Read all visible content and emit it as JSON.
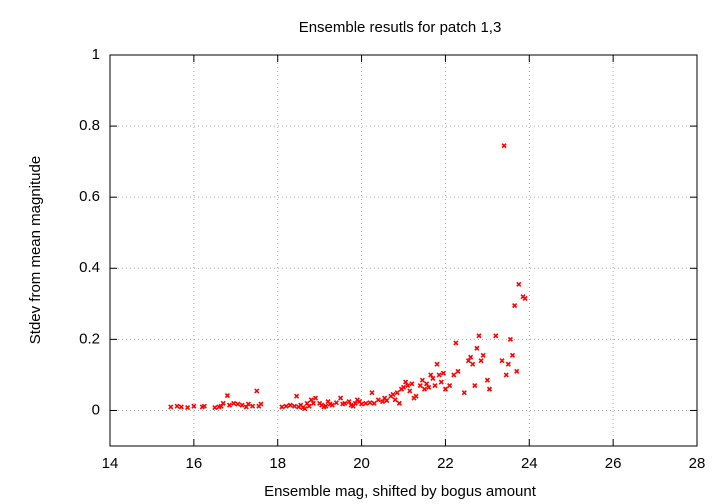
{
  "chart_data": {
    "type": "scatter",
    "title": "Ensemble resutls for patch 1,3",
    "x_label": "Ensemble mag, shifted by bogus amount",
    "y_label": "Stdev from mean magnitude",
    "color": "#ff0000",
    "grid": true,
    "xlim": [
      14,
      28
    ],
    "xticks": [
      14,
      16,
      18,
      20,
      22,
      24,
      26,
      28
    ],
    "ylim": [
      -0.1,
      1
    ],
    "yticks": [
      0,
      0.2,
      0.4,
      0.6,
      0.8,
      1
    ],
    "x": [
      15.45,
      15.6,
      15.7,
      15.85,
      16.0,
      16.2,
      16.25,
      16.5,
      16.6,
      16.65,
      16.7,
      16.8,
      16.85,
      16.95,
      17.05,
      17.15,
      17.25,
      17.3,
      17.4,
      17.5,
      17.55,
      17.6,
      18.1,
      18.2,
      18.3,
      18.4,
      18.45,
      18.5,
      18.55,
      18.6,
      18.65,
      18.7,
      18.75,
      18.8,
      18.85,
      18.9,
      19.0,
      19.05,
      19.1,
      19.15,
      19.2,
      19.25,
      19.3,
      19.4,
      19.5,
      19.55,
      19.6,
      19.7,
      19.75,
      19.8,
      19.85,
      19.9,
      19.95,
      20.0,
      20.1,
      20.2,
      20.25,
      20.3,
      20.4,
      20.5,
      20.55,
      20.6,
      20.7,
      20.75,
      20.8,
      20.85,
      20.9,
      20.95,
      21.0,
      21.05,
      21.1,
      21.15,
      21.2,
      21.25,
      21.3,
      21.4,
      21.45,
      21.5,
      21.55,
      21.6,
      21.65,
      21.7,
      21.75,
      21.8,
      21.85,
      21.9,
      21.95,
      22.0,
      22.1,
      22.2,
      22.25,
      22.3,
      22.45,
      22.55,
      22.6,
      22.65,
      22.7,
      22.75,
      22.8,
      22.85,
      22.9,
      23.0,
      23.05,
      23.2,
      23.35,
      23.4,
      23.45,
      23.5,
      23.55,
      23.6,
      23.65,
      23.7,
      23.75,
      23.85,
      23.9
    ],
    "values": [
      0.01,
      0.012,
      0.01,
      0.008,
      0.012,
      0.01,
      0.012,
      0.008,
      0.01,
      0.012,
      0.02,
      0.042,
      0.015,
      0.02,
      0.018,
      0.015,
      0.01,
      0.018,
      0.012,
      0.055,
      0.012,
      0.018,
      0.01,
      0.012,
      0.015,
      0.012,
      0.04,
      0.01,
      0.015,
      0.008,
      0.005,
      0.02,
      0.012,
      0.03,
      0.02,
      0.035,
      0.02,
      0.015,
      0.01,
      0.012,
      0.025,
      0.018,
      0.015,
      0.022,
      0.035,
      0.018,
      0.02,
      0.025,
      0.015,
      0.012,
      0.02,
      0.03,
      0.025,
      0.018,
      0.02,
      0.022,
      0.05,
      0.02,
      0.03,
      0.025,
      0.035,
      0.028,
      0.04,
      0.045,
      0.03,
      0.05,
      0.02,
      0.06,
      0.065,
      0.08,
      0.07,
      0.055,
      0.075,
      0.035,
      0.04,
      0.07,
      0.085,
      0.06,
      0.075,
      0.065,
      0.1,
      0.09,
      0.07,
      0.13,
      0.1,
      0.08,
      0.105,
      0.06,
      0.07,
      0.1,
      0.19,
      0.11,
      0.05,
      0.14,
      0.15,
      0.13,
      0.07,
      0.175,
      0.21,
      0.14,
      0.155,
      0.085,
      0.06,
      0.21,
      0.14,
      0.745,
      0.1,
      0.13,
      0.2,
      0.155,
      0.295,
      0.11,
      0.355,
      0.32,
      0.315
    ]
  }
}
